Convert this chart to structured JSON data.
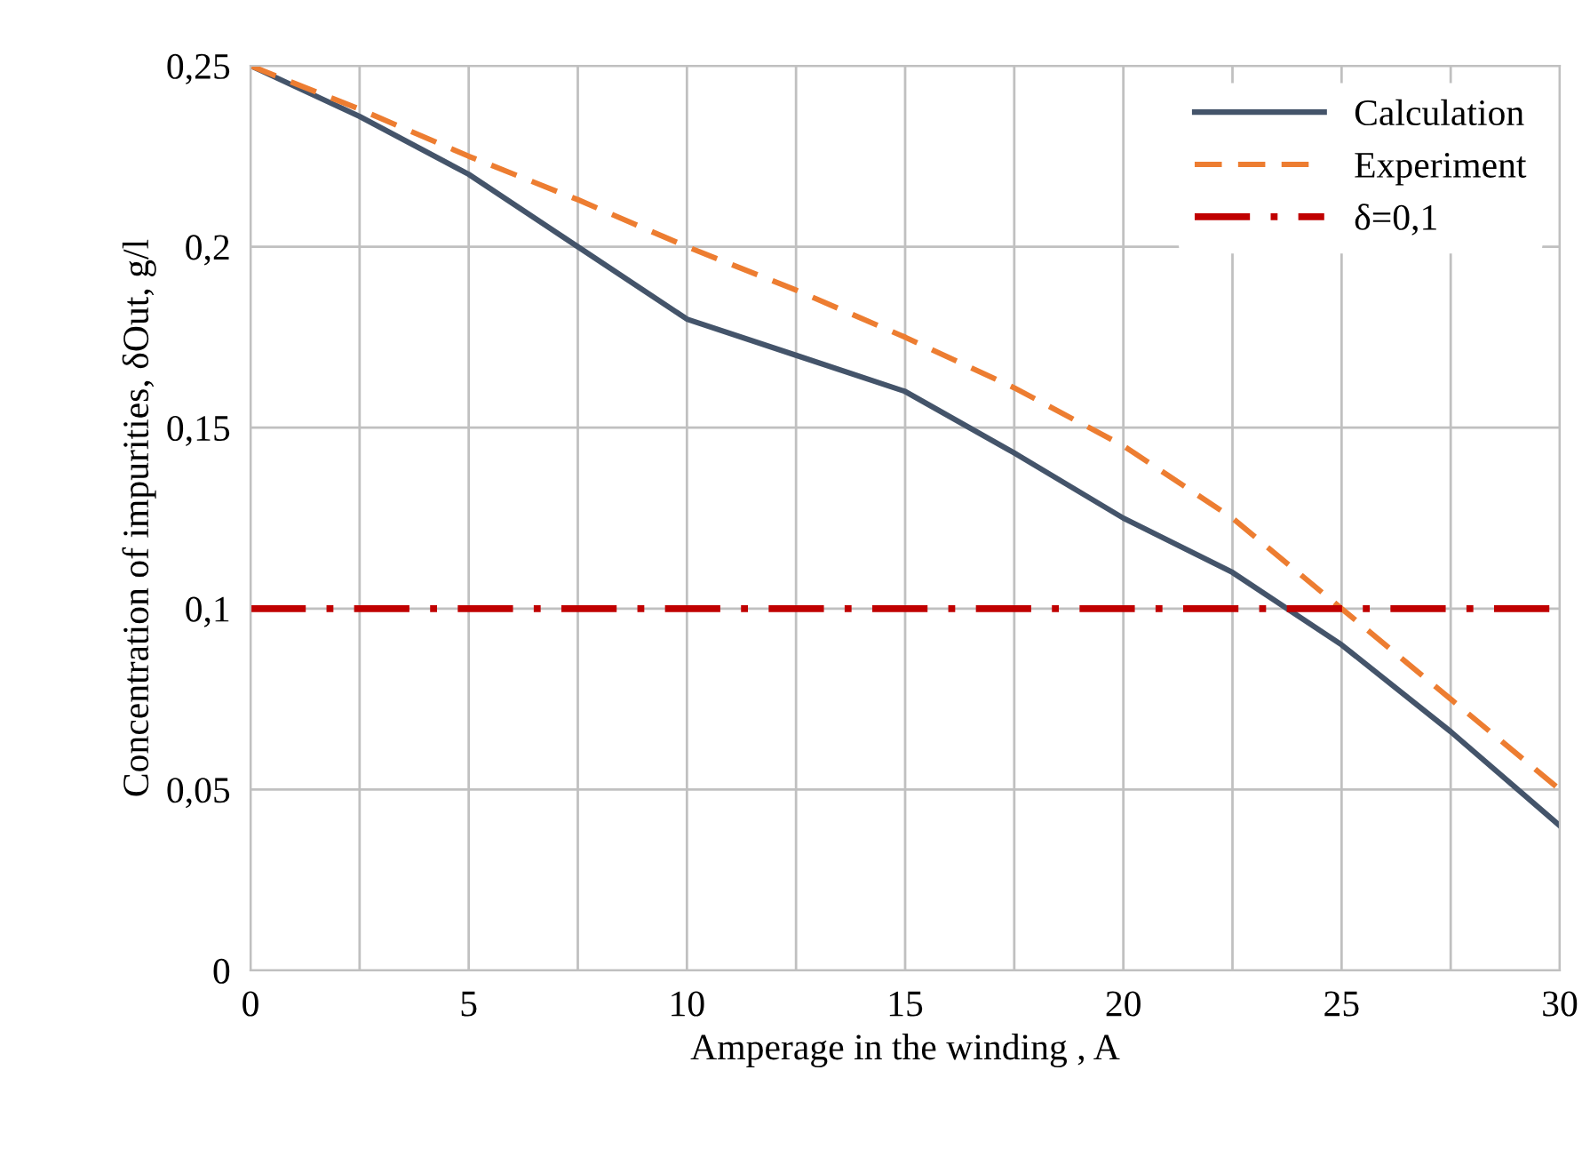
{
  "chart_data": {
    "type": "line",
    "xlabel": "Amperage in the winding , A",
    "ylabel": "Concentration of impurities, δOut, g/l",
    "x": [
      0,
      2.5,
      5,
      7.5,
      10,
      12.5,
      15,
      17.5,
      20,
      22.5,
      25,
      27.5,
      30
    ],
    "series": [
      {
        "name": "Calculation",
        "color": "#44546a",
        "line_style": "solid",
        "values": [
          0.25,
          0.236,
          0.22,
          0.2,
          0.18,
          0.17,
          0.16,
          0.143,
          0.125,
          0.11,
          0.09,
          0.066,
          0.04
        ]
      },
      {
        "name": "Experiment",
        "color": "#ed7d31",
        "line_style": "dashed",
        "values": [
          0.25,
          0.238,
          0.225,
          0.213,
          0.2,
          0.188,
          0.175,
          0.161,
          0.145,
          0.125,
          0.1,
          0.075,
          0.05
        ]
      },
      {
        "name": "δ=0,1",
        "color": "#c00000",
        "line_style": "dashdot",
        "x": [
          0,
          30
        ],
        "values": [
          0.1,
          0.1
        ]
      }
    ],
    "xlim": [
      0,
      30
    ],
    "xticks": [
      0,
      {
        "value": 2.5,
        "label": null
      },
      5,
      {
        "value": 7.5,
        "label": null
      },
      10,
      {
        "value": 12.5,
        "label": null
      },
      15,
      {
        "value": 17.5,
        "label": null
      },
      20,
      {
        "value": 22.5,
        "label": null
      },
      25,
      {
        "value": 27.5,
        "label": null
      },
      30
    ],
    "ylim": [
      0,
      0.25
    ],
    "yticks": [
      0,
      {
        "value": 0.05,
        "label": "0,05"
      },
      {
        "value": 0.1,
        "label": "0,1"
      },
      {
        "value": 0.15,
        "label": "0,15"
      },
      {
        "value": 0.2,
        "label": "0,2"
      },
      {
        "value": 0.25,
        "label": "0,25"
      }
    ],
    "grid": true,
    "legend": "top right",
    "marker": "none"
  }
}
